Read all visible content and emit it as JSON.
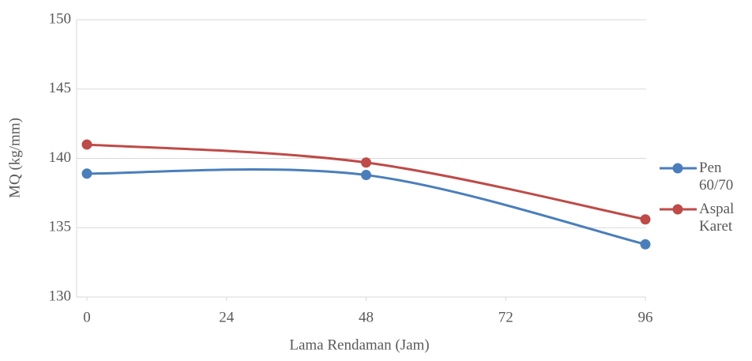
{
  "chart_data": {
    "type": "line",
    "xlabel": "Lama Rendaman (Jam)",
    "ylabel": "MQ (kg/mm)",
    "x": [
      0,
      48,
      96
    ],
    "series": [
      {
        "name": "Pen 60/70",
        "color": "#4a7ebb",
        "values": [
          138.9,
          138.8,
          133.8
        ]
      },
      {
        "name": "Aspal Karet",
        "color": "#be4b48",
        "values": [
          141.0,
          139.7,
          135.6
        ]
      }
    ],
    "xlim": [
      0,
      96
    ],
    "xticks": [
      0,
      24,
      48,
      72,
      96
    ],
    "ylim": [
      130,
      150
    ],
    "yticks": [
      130,
      135,
      140,
      145,
      150
    ],
    "grid": true,
    "legend": "right"
  }
}
